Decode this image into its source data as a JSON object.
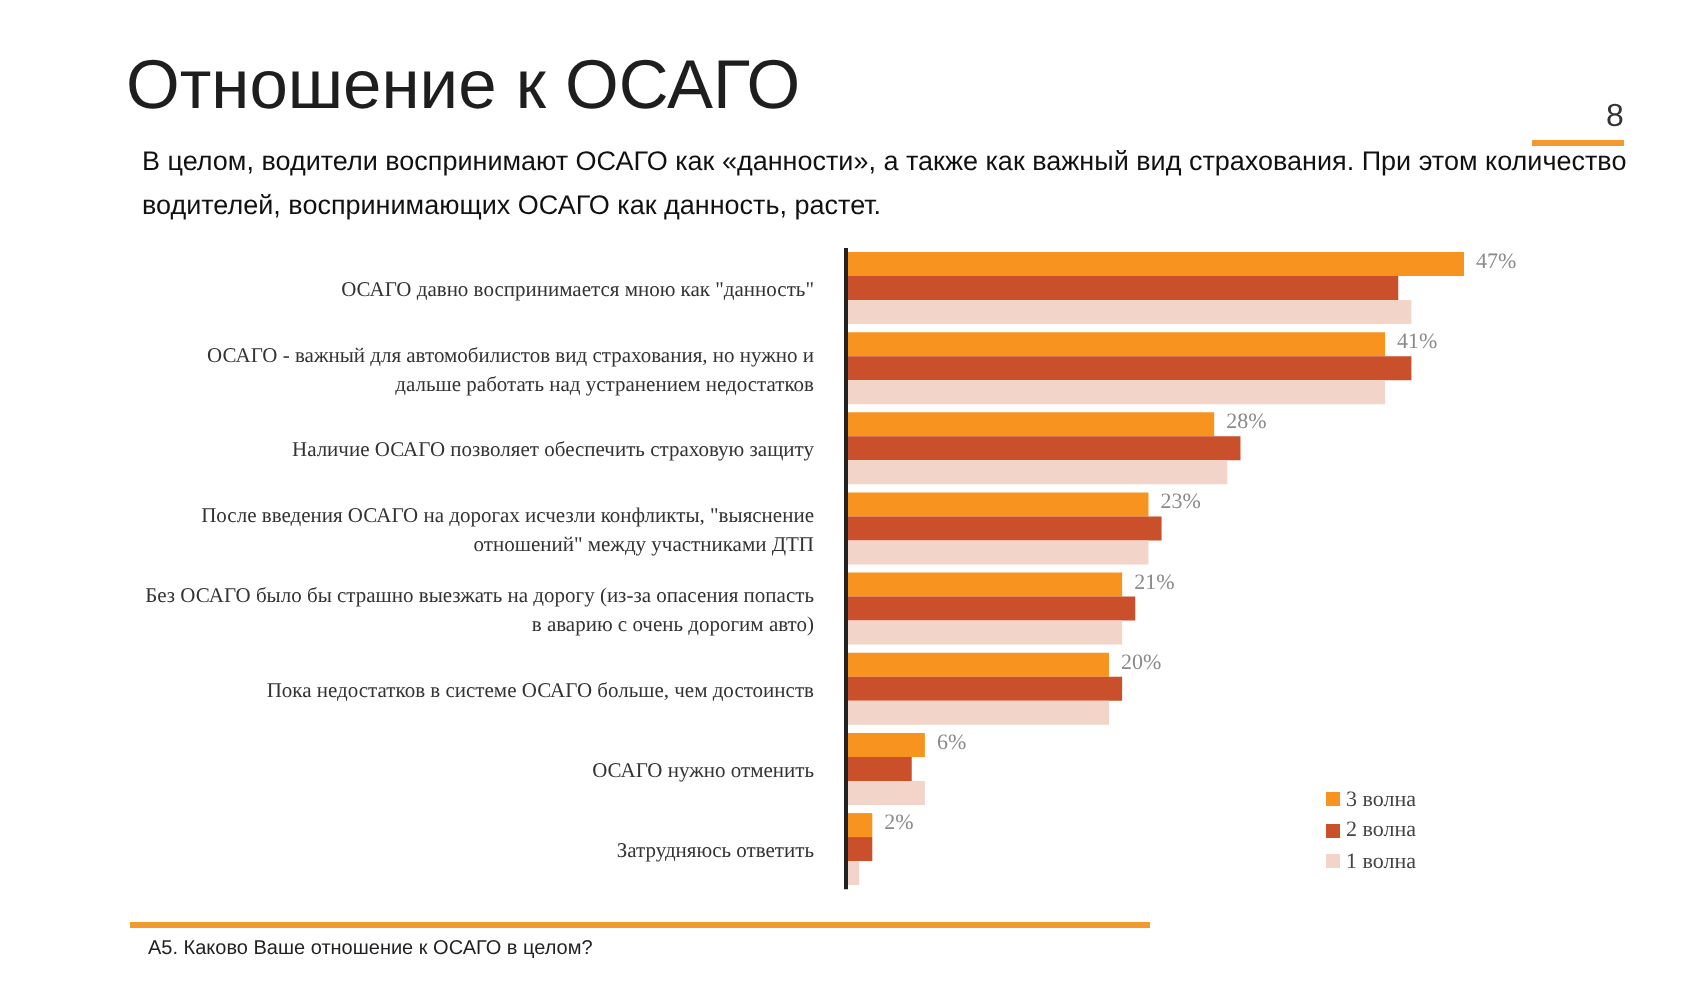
{
  "chart_data": {
    "type": "bar",
    "orientation": "horizontal",
    "title": "Отношение к ОСАГО",
    "subtitle": "В целом, водители воспринимают ОСАГО как «данности», а также как важный вид страхования. При этом количество водителей, воспринимающих ОСАГО как данность, растет.",
    "categories": [
      "ОСАГО давно воспринимается мною как \"данность\"",
      "ОСАГО - важный для автомобилистов вид страхования, но нужно и дальше работать над устранением недостатков",
      "Наличие ОСАГО позволяет обеспечить страховую защиту",
      "После введения ОСАГО на дорогах исчезли конфликты, \"выяснение отношений\" между участниками ДТП",
      "Без ОСАГО было бы страшно выезжать на дорогу (из-за опасения попасть в аварию с очень дорогим авто)",
      "Пока недостатков в системе ОСАГО больше, чем достоинств",
      "ОСАГО нужно отменить",
      "Затрудняюсь ответить"
    ],
    "series": [
      {
        "name": "3 волна",
        "color": "#f7931e",
        "values": [
          47,
          41,
          28,
          23,
          21,
          20,
          6,
          2
        ],
        "value_labels": [
          "47%",
          "41%",
          "28%",
          "23%",
          "21%",
          "20%",
          "6%",
          "2%"
        ]
      },
      {
        "name": "2 волна",
        "color": "#c9502b",
        "values": [
          42,
          43,
          30,
          24,
          22,
          21,
          5,
          2
        ]
      },
      {
        "name": "1 волна",
        "color": "#f2d4c9",
        "values": [
          43,
          41,
          29,
          23,
          21,
          20,
          6,
          1
        ]
      }
    ],
    "tick_labels": "y",
    "legend": "bottom right",
    "annotations": [
      "8",
      "A5. Каково Ваше отношение к ОСАГО в целом?"
    ]
  }
}
